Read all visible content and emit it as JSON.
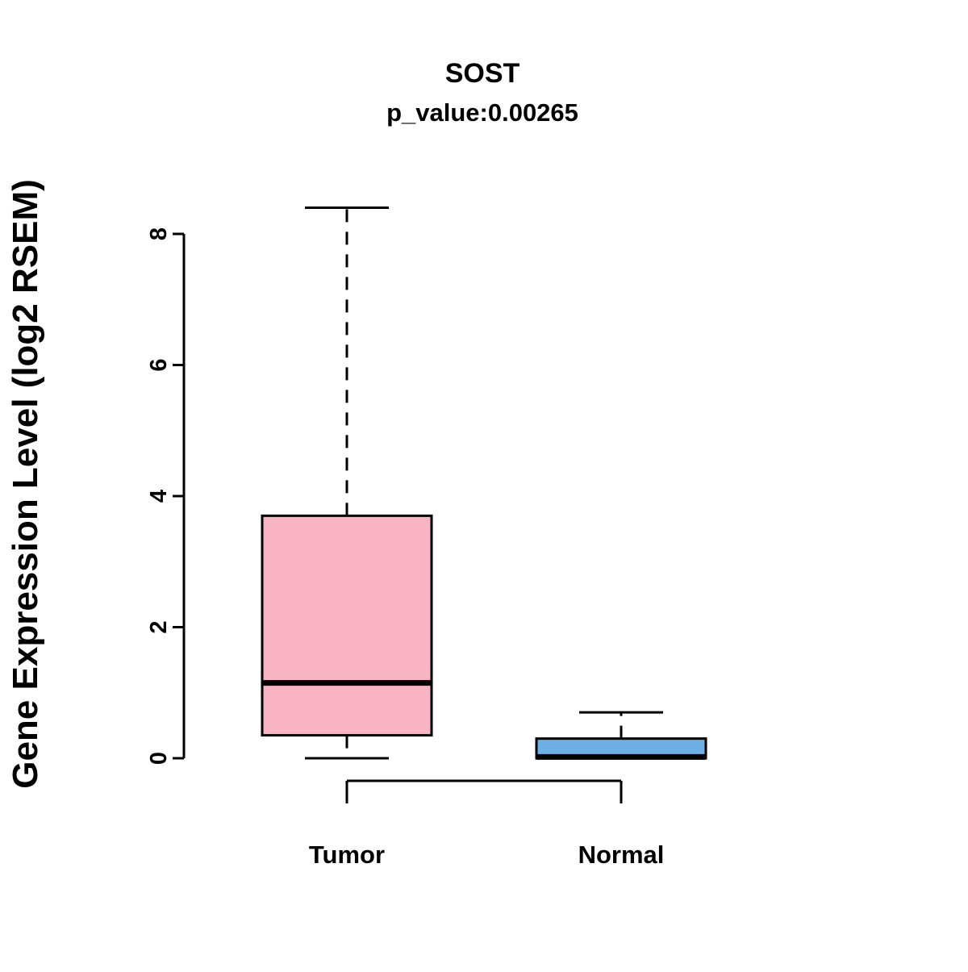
{
  "chart_data": {
    "type": "boxplot",
    "title": "SOST",
    "subtitle": "p_value:0.00265",
    "ylabel": "Gene Expression Level (log2 RSEM)",
    "xlabel": "",
    "yticks": [
      0,
      2,
      4,
      6,
      8
    ],
    "ylim": [
      -0.6,
      8.6
    ],
    "grid": false,
    "legend": "none",
    "groups": [
      {
        "label": "Tumor",
        "color": "#F9B4C4",
        "whisker_low": 0.0,
        "q1": 0.35,
        "median": 1.15,
        "q3": 3.7,
        "whisker_high": 8.4
      },
      {
        "label": "Normal",
        "color": "#6CB0E4",
        "whisker_low": 0.0,
        "q1": 0.0,
        "median": 0.02,
        "q3": 0.3,
        "whisker_high": 0.7
      }
    ]
  }
}
